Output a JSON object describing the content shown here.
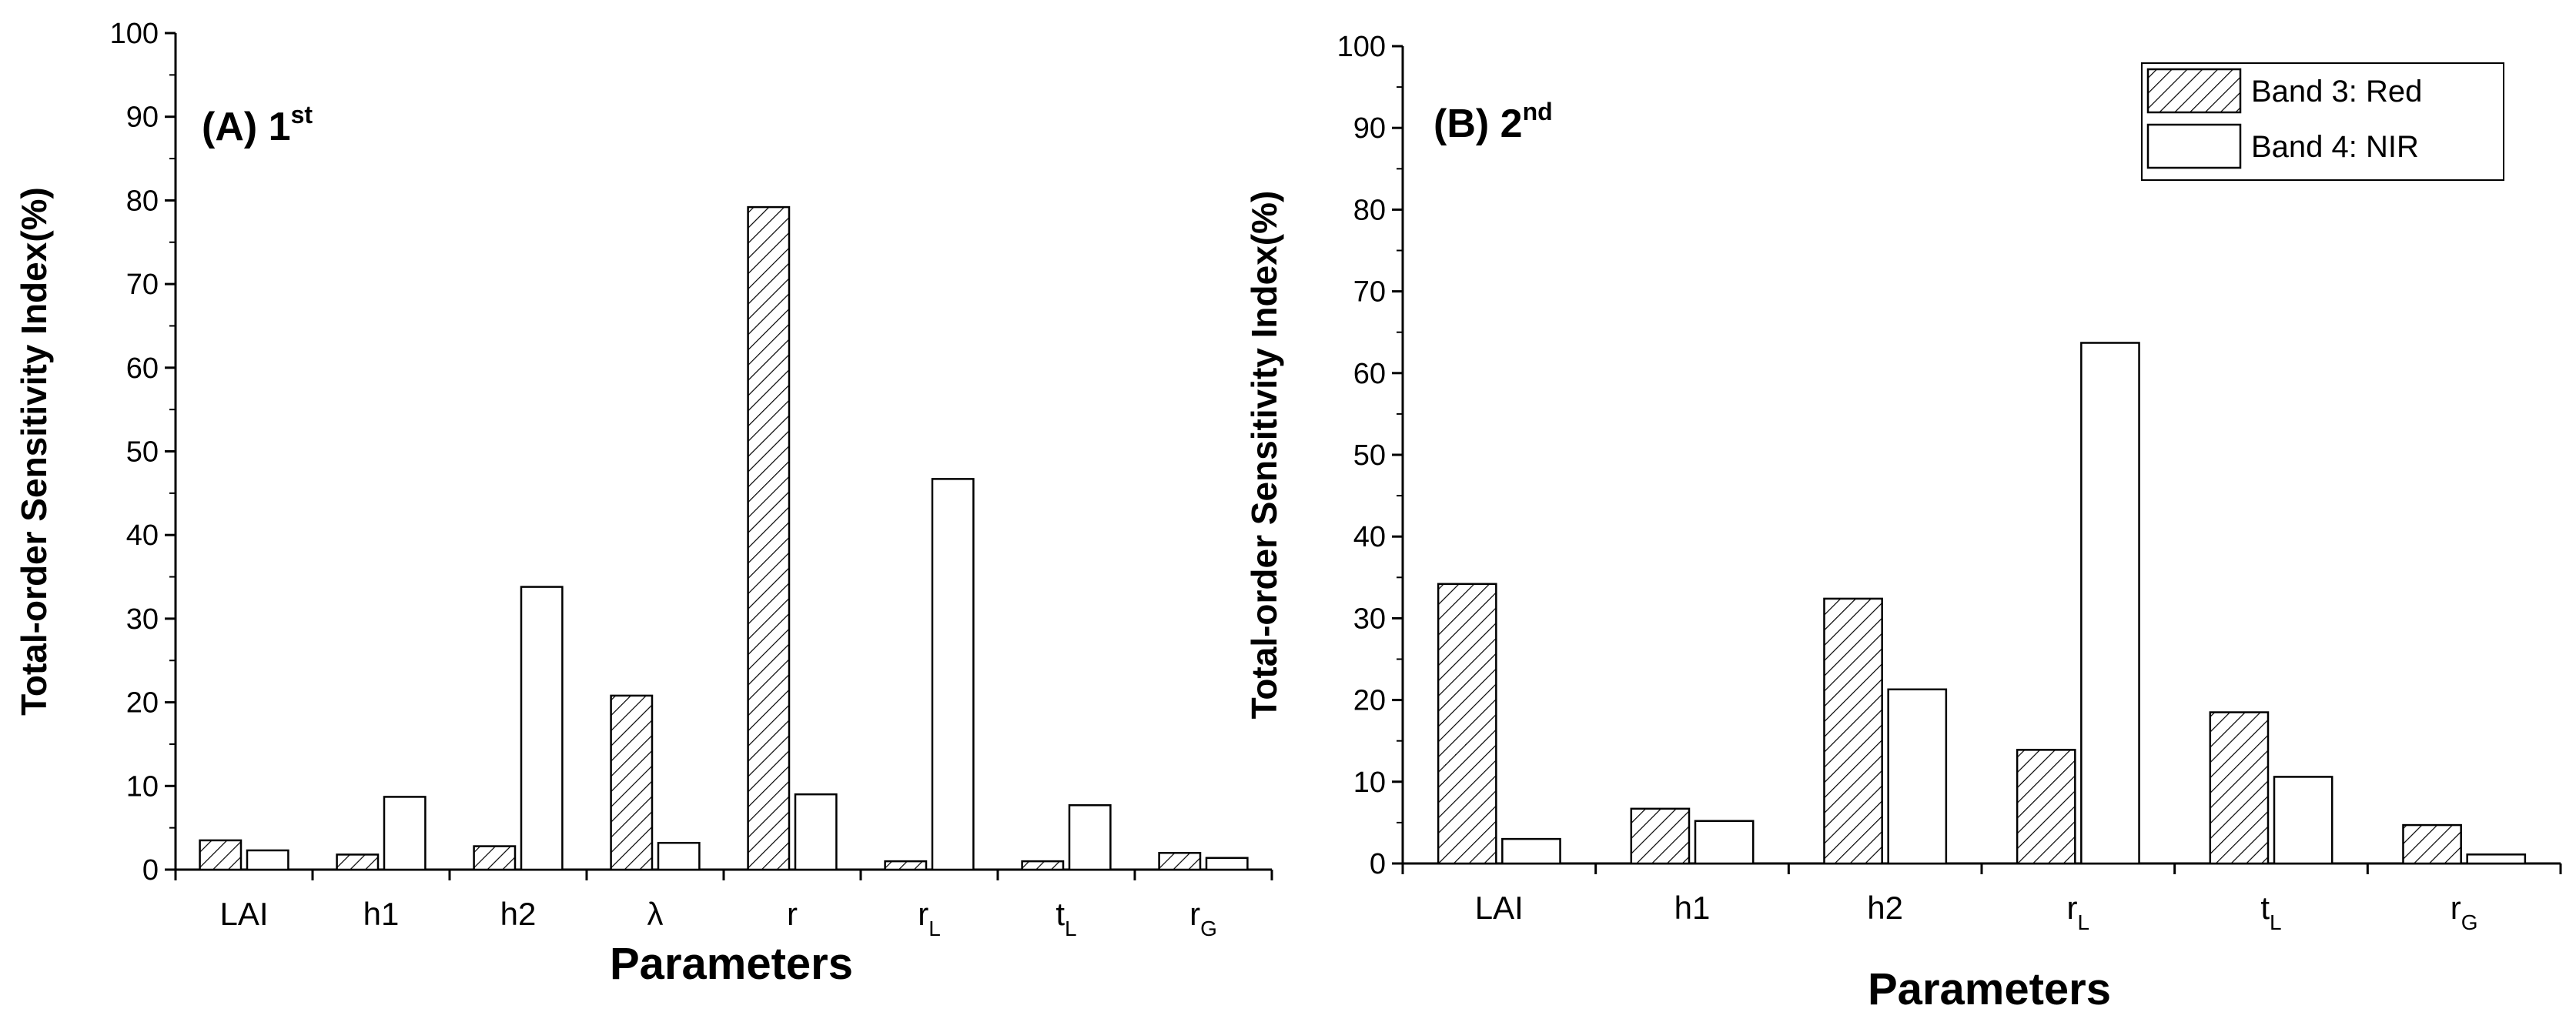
{
  "chart_data": [
    {
      "type": "bar",
      "panel_label": "(A) 1",
      "panel_label_sup": "st",
      "xlabel": "Parameters",
      "ylabel": "Total-order Sensitivity Index(%)",
      "ylim": [
        0,
        100
      ],
      "yticks": [
        "0",
        "10",
        "20",
        "30",
        "40",
        "50",
        "60",
        "70",
        "80",
        "90",
        "100"
      ],
      "categories": [
        {
          "main": "LAI",
          "sub": ""
        },
        {
          "main": "h1",
          "sub": ""
        },
        {
          "main": "h2",
          "sub": ""
        },
        {
          "main": "λ",
          "sub": ""
        },
        {
          "main": "r",
          "sub": ""
        },
        {
          "main": "r",
          "sub": "L"
        },
        {
          "main": "t",
          "sub": "L"
        },
        {
          "main": "r",
          "sub": "G"
        }
      ],
      "series": [
        {
          "name": "Band 3: Red",
          "pattern": "hatched",
          "values": [
            3.5,
            1.8,
            2.8,
            20.8,
            79.2,
            1.0,
            1.0,
            2.0
          ]
        },
        {
          "name": "Band 4: NIR",
          "pattern": "open",
          "values": [
            2.3,
            8.7,
            33.8,
            3.2,
            9.0,
            46.7,
            7.7,
            1.4
          ]
        }
      ],
      "grid": false,
      "legend": "none"
    },
    {
      "type": "bar",
      "panel_label": "(B) 2",
      "panel_label_sup": "nd",
      "xlabel": "Parameters",
      "ylabel": "Total-order Sensitivity Index(%)",
      "ylim": [
        0,
        100
      ],
      "yticks": [
        "0",
        "10",
        "20",
        "30",
        "40",
        "50",
        "60",
        "70",
        "80",
        "90",
        "100"
      ],
      "categories": [
        {
          "main": "LAI",
          "sub": ""
        },
        {
          "main": "h1",
          "sub": ""
        },
        {
          "main": "h2",
          "sub": ""
        },
        {
          "main": "r",
          "sub": "L"
        },
        {
          "main": "t",
          "sub": "L"
        },
        {
          "main": "r",
          "sub": "G"
        }
      ],
      "series": [
        {
          "name": "Band 3: Red",
          "pattern": "hatched",
          "values": [
            34.2,
            6.7,
            32.4,
            13.9,
            18.5,
            4.7
          ]
        },
        {
          "name": "Band 4: NIR",
          "pattern": "open",
          "values": [
            3.0,
            5.2,
            21.3,
            63.7,
            10.6,
            1.1
          ]
        }
      ],
      "grid": false,
      "legend": "top-right"
    }
  ]
}
